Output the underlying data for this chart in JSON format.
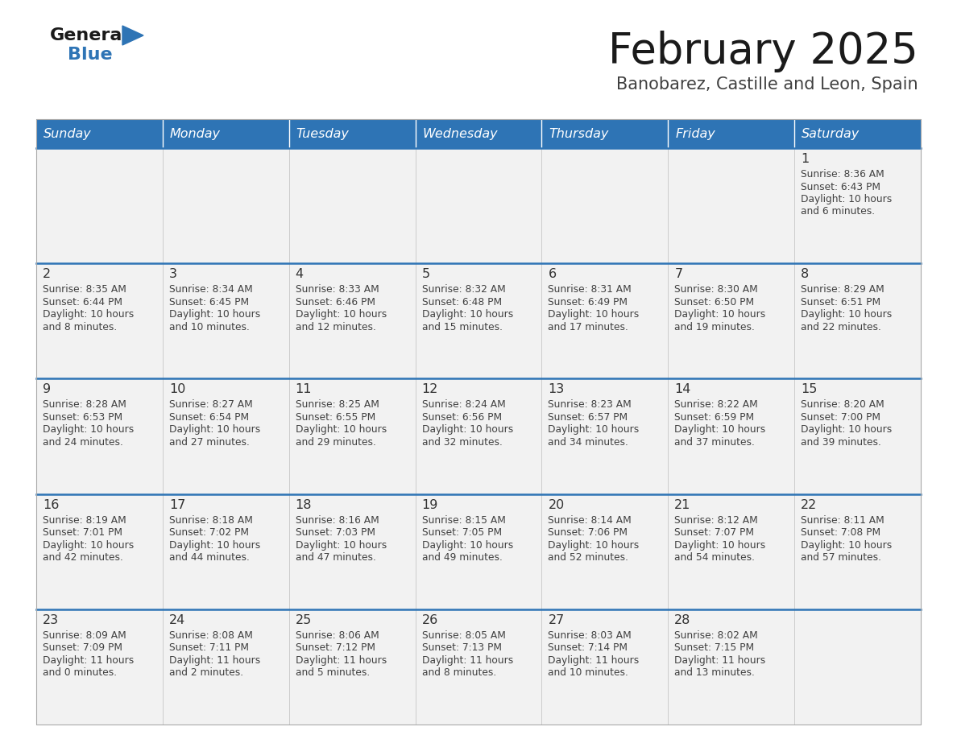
{
  "title": "February 2025",
  "subtitle": "Banobarez, Castille and Leon, Spain",
  "header_bg": "#2E74B5",
  "header_text_color": "#FFFFFF",
  "day_names": [
    "Sunday",
    "Monday",
    "Tuesday",
    "Wednesday",
    "Thursday",
    "Friday",
    "Saturday"
  ],
  "divider_color": "#2E74B5",
  "cell_bg": "#F2F2F2",
  "text_color": "#404040",
  "day_num_color": "#333333",
  "calendar": [
    [
      null,
      null,
      null,
      null,
      null,
      null,
      {
        "day": "1",
        "sunrise": "8:36 AM",
        "sunset": "6:43 PM",
        "daylight_h": "10 hours",
        "daylight_m": "and 6 minutes."
      }
    ],
    [
      {
        "day": "2",
        "sunrise": "8:35 AM",
        "sunset": "6:44 PM",
        "daylight_h": "10 hours",
        "daylight_m": "and 8 minutes."
      },
      {
        "day": "3",
        "sunrise": "8:34 AM",
        "sunset": "6:45 PM",
        "daylight_h": "10 hours",
        "daylight_m": "and 10 minutes."
      },
      {
        "day": "4",
        "sunrise": "8:33 AM",
        "sunset": "6:46 PM",
        "daylight_h": "10 hours",
        "daylight_m": "and 12 minutes."
      },
      {
        "day": "5",
        "sunrise": "8:32 AM",
        "sunset": "6:48 PM",
        "daylight_h": "10 hours",
        "daylight_m": "and 15 minutes."
      },
      {
        "day": "6",
        "sunrise": "8:31 AM",
        "sunset": "6:49 PM",
        "daylight_h": "10 hours",
        "daylight_m": "and 17 minutes."
      },
      {
        "day": "7",
        "sunrise": "8:30 AM",
        "sunset": "6:50 PM",
        "daylight_h": "10 hours",
        "daylight_m": "and 19 minutes."
      },
      {
        "day": "8",
        "sunrise": "8:29 AM",
        "sunset": "6:51 PM",
        "daylight_h": "10 hours",
        "daylight_m": "and 22 minutes."
      }
    ],
    [
      {
        "day": "9",
        "sunrise": "8:28 AM",
        "sunset": "6:53 PM",
        "daylight_h": "10 hours",
        "daylight_m": "and 24 minutes."
      },
      {
        "day": "10",
        "sunrise": "8:27 AM",
        "sunset": "6:54 PM",
        "daylight_h": "10 hours",
        "daylight_m": "and 27 minutes."
      },
      {
        "day": "11",
        "sunrise": "8:25 AM",
        "sunset": "6:55 PM",
        "daylight_h": "10 hours",
        "daylight_m": "and 29 minutes."
      },
      {
        "day": "12",
        "sunrise": "8:24 AM",
        "sunset": "6:56 PM",
        "daylight_h": "10 hours",
        "daylight_m": "and 32 minutes."
      },
      {
        "day": "13",
        "sunrise": "8:23 AM",
        "sunset": "6:57 PM",
        "daylight_h": "10 hours",
        "daylight_m": "and 34 minutes."
      },
      {
        "day": "14",
        "sunrise": "8:22 AM",
        "sunset": "6:59 PM",
        "daylight_h": "10 hours",
        "daylight_m": "and 37 minutes."
      },
      {
        "day": "15",
        "sunrise": "8:20 AM",
        "sunset": "7:00 PM",
        "daylight_h": "10 hours",
        "daylight_m": "and 39 minutes."
      }
    ],
    [
      {
        "day": "16",
        "sunrise": "8:19 AM",
        "sunset": "7:01 PM",
        "daylight_h": "10 hours",
        "daylight_m": "and 42 minutes."
      },
      {
        "day": "17",
        "sunrise": "8:18 AM",
        "sunset": "7:02 PM",
        "daylight_h": "10 hours",
        "daylight_m": "and 44 minutes."
      },
      {
        "day": "18",
        "sunrise": "8:16 AM",
        "sunset": "7:03 PM",
        "daylight_h": "10 hours",
        "daylight_m": "and 47 minutes."
      },
      {
        "day": "19",
        "sunrise": "8:15 AM",
        "sunset": "7:05 PM",
        "daylight_h": "10 hours",
        "daylight_m": "and 49 minutes."
      },
      {
        "day": "20",
        "sunrise": "8:14 AM",
        "sunset": "7:06 PM",
        "daylight_h": "10 hours",
        "daylight_m": "and 52 minutes."
      },
      {
        "day": "21",
        "sunrise": "8:12 AM",
        "sunset": "7:07 PM",
        "daylight_h": "10 hours",
        "daylight_m": "and 54 minutes."
      },
      {
        "day": "22",
        "sunrise": "8:11 AM",
        "sunset": "7:08 PM",
        "daylight_h": "10 hours",
        "daylight_m": "and 57 minutes."
      }
    ],
    [
      {
        "day": "23",
        "sunrise": "8:09 AM",
        "sunset": "7:09 PM",
        "daylight_h": "11 hours",
        "daylight_m": "and 0 minutes."
      },
      {
        "day": "24",
        "sunrise": "8:08 AM",
        "sunset": "7:11 PM",
        "daylight_h": "11 hours",
        "daylight_m": "and 2 minutes."
      },
      {
        "day": "25",
        "sunrise": "8:06 AM",
        "sunset": "7:12 PM",
        "daylight_h": "11 hours",
        "daylight_m": "and 5 minutes."
      },
      {
        "day": "26",
        "sunrise": "8:05 AM",
        "sunset": "7:13 PM",
        "daylight_h": "11 hours",
        "daylight_m": "and 8 minutes."
      },
      {
        "day": "27",
        "sunrise": "8:03 AM",
        "sunset": "7:14 PM",
        "daylight_h": "11 hours",
        "daylight_m": "and 10 minutes."
      },
      {
        "day": "28",
        "sunrise": "8:02 AM",
        "sunset": "7:15 PM",
        "daylight_h": "11 hours",
        "daylight_m": "and 13 minutes."
      },
      null
    ]
  ]
}
